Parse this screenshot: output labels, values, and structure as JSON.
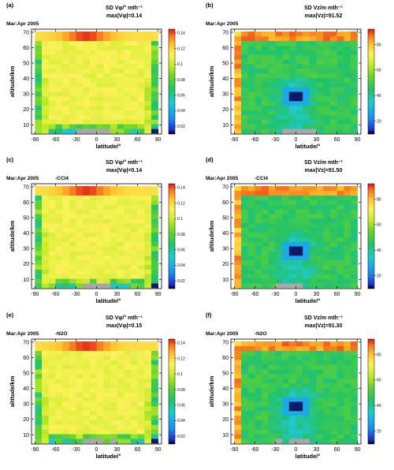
{
  "figure": {
    "panels": [
      {
        "letter": "(a)",
        "title_line1": "SD Vφ/° mth⁻¹",
        "title_line2": "max|Vφ|=0.14",
        "annotation": "Mar:Apr 2005",
        "case": "",
        "field": "phi"
      },
      {
        "letter": "(b)",
        "title_line1": "SD Vz/m mth⁻¹",
        "title_line2": "max|Vz|=91.52",
        "annotation": "Mar:Apr 2005",
        "case": "",
        "field": "z"
      },
      {
        "letter": "(c)",
        "title_line1": "SD Vφ/° mth⁻¹",
        "title_line2": "max|Vφ|=0.14",
        "annotation": "Mar:Apr 2005",
        "case": "-CCl4",
        "field": "phi"
      },
      {
        "letter": "(d)",
        "title_line1": "SD Vz/m mth⁻¹",
        "title_line2": "max|Vz|=91.50",
        "annotation": "Mar:Apr 2005",
        "case": "-CCl4",
        "field": "z"
      },
      {
        "letter": "(e)",
        "title_line1": "SD Vφ/° mth⁻¹",
        "title_line2": "max|Vφ|=0.15",
        "annotation": "Mar:Apr 2005",
        "case": "-N2O",
        "field": "phi"
      },
      {
        "letter": "(f)",
        "title_line1": "SD Vz/m mth⁻¹",
        "title_line2": "max|Vz|=91.30",
        "annotation": "Mar:Apr 2005",
        "case": "-N2O",
        "field": "z"
      }
    ]
  },
  "chart_data": {
    "type": "heatmap",
    "xlabel": "latitude/°",
    "ylabel": "altitude/km",
    "xlim": [
      -95,
      95
    ],
    "ylim": [
      4,
      72
    ],
    "x_ticks": [
      -90,
      -60,
      -30,
      0,
      30,
      60,
      90
    ],
    "y_ticks": [
      10,
      20,
      30,
      40,
      50,
      60,
      70
    ],
    "grid": false,
    "colormap": [
      "#000000",
      "#1c2fd6",
      "#1a8ef0",
      "#1fc9d6",
      "#22c26a",
      "#6ad52b",
      "#c9ec28",
      "#fbf25a",
      "#ffc02a",
      "#f5751d",
      "#e0151b"
    ],
    "no_data_color": "#a8a8a8",
    "colorbar_phi": {
      "ticks": [
        0.02,
        0.04,
        0.06,
        0.08,
        0.1,
        0.12,
        0.14
      ],
      "range": [
        0.01,
        0.145
      ]
    },
    "colorbar_z": {
      "ticks": [
        20,
        40,
        60,
        80
      ],
      "range": [
        10,
        92
      ]
    },
    "series": [
      {
        "name": "SD Vφ",
        "grid_note": "latitude bins -85..85 step 10 (approx.), altitude bins 6..68 step 3 km (approx.)",
        "lat": [
          -85,
          -75,
          -65,
          -55,
          -45,
          -35,
          -25,
          -15,
          -5,
          5,
          15,
          25,
          35,
          45,
          55,
          65,
          75,
          85
        ],
        "alt": [
          6,
          9,
          12,
          15,
          18,
          21,
          24,
          27,
          30,
          33,
          36,
          39,
          42,
          45,
          48,
          51,
          54,
          57,
          60,
          63,
          66,
          69
        ],
        "pattern": "low (0.03–0.07, green/cyan) in bottom 2–3 rows and at ±85° columns; ~0.10–0.11 (yellow) across most interior; 0.12–0.14 (orange/red) in the top row at 66–70 km peaking near -30°–0°; gray no-data bins near the equator at 5–7 km",
        "max": 0.14
      },
      {
        "name": "SD Vz",
        "lat": [
          -85,
          -75,
          -65,
          -55,
          -45,
          -35,
          -25,
          -15,
          -5,
          5,
          15,
          25,
          35,
          45,
          55,
          65,
          75,
          85
        ],
        "alt": [
          6,
          9,
          12,
          15,
          18,
          21,
          24,
          27,
          30,
          33,
          36,
          39,
          42,
          45,
          48,
          51,
          54,
          57,
          60,
          63,
          66,
          69
        ],
        "pattern": "mostly 35–55 (green/cyan); 70–92 (orange/red) at -85° and in the top row 66–70 km; minimum <15 (dark blue/black) at equator near 27–30 km; 20–30 (blue) in the lower tropics",
        "max": 91.5
      }
    ]
  }
}
